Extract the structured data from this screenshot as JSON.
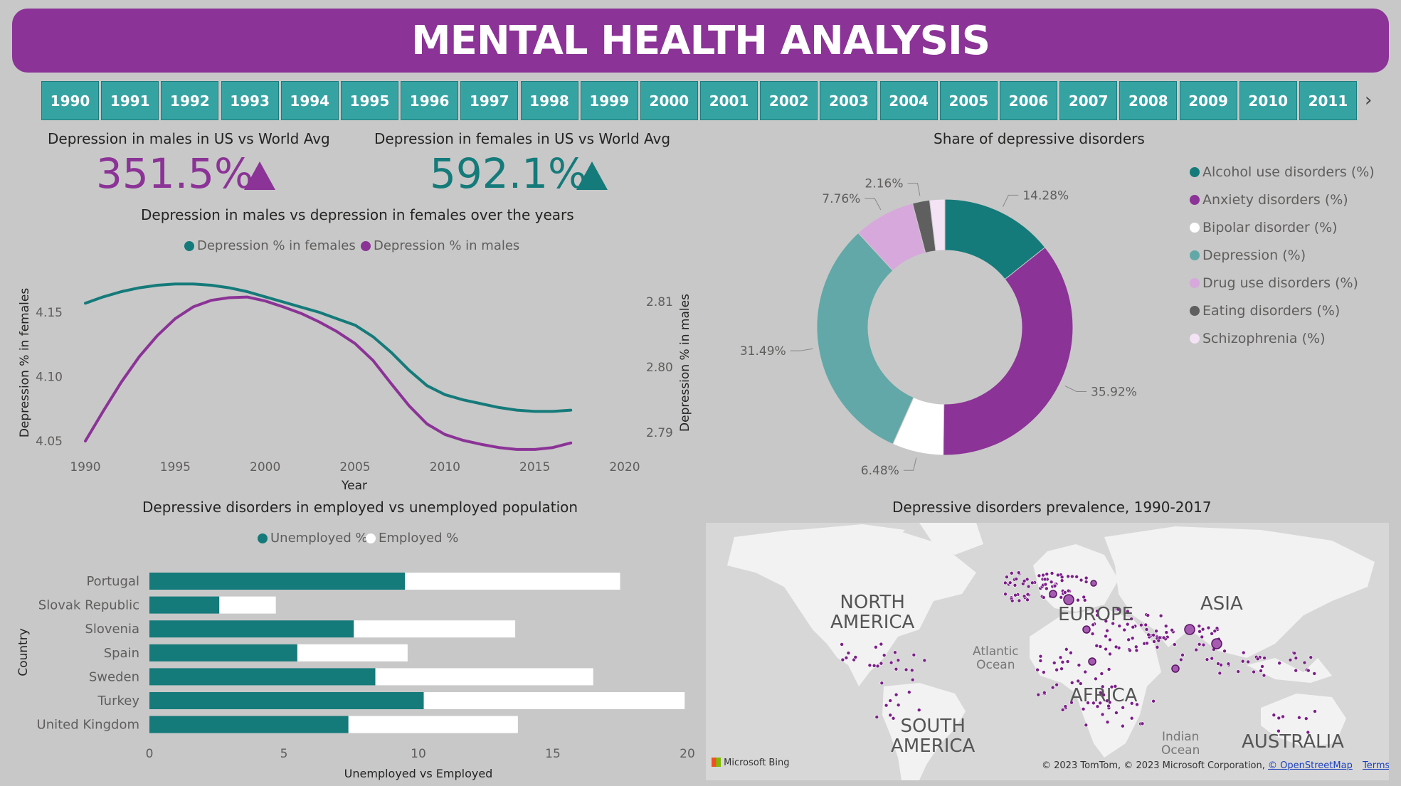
{
  "title": "MENTAL HEALTH ANALYSIS",
  "years": [
    "1990",
    "1991",
    "1992",
    "1993",
    "1994",
    "1995",
    "1996",
    "1997",
    "1998",
    "1999",
    "2000",
    "2001",
    "2002",
    "2003",
    "2004",
    "2005",
    "2006",
    "2007",
    "2008",
    "2009",
    "2010",
    "2011"
  ],
  "kpi_males": {
    "heading": "Depression in males in US vs World Avg",
    "value": "351.5%",
    "color": "#8b3396"
  },
  "kpi_females": {
    "heading": "Depression in females in US vs World Avg",
    "value": "592.1%",
    "color": "#157a7a"
  },
  "colors": {
    "teal": "#157a7a",
    "purple": "#8b3396",
    "teal_light": "#62a8a8",
    "slicer": "#36a3a3",
    "banner": "#8b3396"
  },
  "chart_data": [
    {
      "type": "line",
      "title": "Depression in males vs depression in females over the years",
      "xlabel": "Year",
      "ylabel": "Depression % in females",
      "y2label": "Depression % in males",
      "xlim": [
        1990,
        2020
      ],
      "x_ticks": [
        "1990",
        "1995",
        "2000",
        "2005",
        "2010",
        "2015",
        "2020"
      ],
      "y_ticks": [
        "4.05",
        "4.10",
        "4.15"
      ],
      "y2_ticks": [
        "2.79",
        "2.80",
        "2.81"
      ],
      "ylim": [
        4.05,
        4.15
      ],
      "y2lim": [
        2.79,
        2.81
      ],
      "x": [
        1990,
        1991,
        1992,
        1993,
        1994,
        1995,
        1996,
        1997,
        1998,
        1999,
        2000,
        2001,
        2002,
        2003,
        2004,
        2005,
        2006,
        2007,
        2008,
        2009,
        2010,
        2011,
        2012,
        2013,
        2014,
        2015,
        2016,
        2017
      ],
      "series": [
        {
          "name": "Depression % in females",
          "axis": "left",
          "color": "#157a7a",
          "values": [
            4.157,
            4.162,
            4.166,
            4.169,
            4.171,
            4.172,
            4.172,
            4.171,
            4.169,
            4.166,
            4.162,
            4.158,
            4.154,
            4.15,
            4.145,
            4.14,
            4.131,
            4.119,
            4.105,
            4.093,
            4.086,
            4.082,
            4.079,
            4.076,
            4.074,
            4.073,
            4.073,
            4.074
          ]
        },
        {
          "name": "Depression % in males",
          "axis": "right",
          "color": "#8b3396",
          "values": [
            2.7887,
            2.7933,
            2.7977,
            2.8016,
            2.8048,
            2.8074,
            2.8092,
            2.8102,
            2.8106,
            2.8107,
            2.8101,
            2.8092,
            2.8082,
            2.8069,
            2.8054,
            2.8036,
            2.801,
            2.7975,
            2.7941,
            2.7913,
            2.7897,
            2.7888,
            2.7882,
            2.7877,
            2.7874,
            2.7874,
            2.7877,
            2.7884
          ]
        }
      ]
    },
    {
      "type": "pie",
      "title": "Share of depressive disorders",
      "slices": [
        {
          "name": "Alcohol use disorders (%)",
          "value": 14.28,
          "label": "14.28%",
          "color": "#157a7a"
        },
        {
          "name": "Anxiety disorders (%)",
          "value": 35.92,
          "label": "35.92%",
          "color": "#8b3396"
        },
        {
          "name": "Bipolar disorder (%)",
          "value": 6.48,
          "label": "6.48%",
          "color": "#ffffff"
        },
        {
          "name": "Depression (%)",
          "value": 31.49,
          "label": "31.49%",
          "color": "#62a8a8"
        },
        {
          "name": "Drug use disorders (%)",
          "value": 7.76,
          "label": "7.76%",
          "color": "#d7a8dc"
        },
        {
          "name": "Eating disorders (%)",
          "value": 2.16,
          "label": "2.16%",
          "color": "#5f5f5f"
        },
        {
          "name": "Schizophrenia (%)",
          "value": 1.91,
          "label": "",
          "color": "#f3e3f5"
        }
      ]
    },
    {
      "type": "bar",
      "orientation": "horizontal",
      "stacked": true,
      "title": "Depressive disorders in employed vs unemployed population",
      "xlabel": "Unemployed vs Employed",
      "ylabel": "Country",
      "xlim": [
        0,
        20
      ],
      "x_ticks": [
        "0",
        "5",
        "10",
        "15",
        "20"
      ],
      "categories": [
        "Portugal",
        "Slovak Republic",
        "Slovenia",
        "Spain",
        "Sweden",
        "Turkey",
        "United Kingdom"
      ],
      "series": [
        {
          "name": "Unemployed %",
          "color": "#157a7a",
          "values": [
            9.5,
            2.6,
            7.6,
            5.5,
            8.4,
            10.2,
            7.4
          ]
        },
        {
          "name": "Employed %",
          "color": "#ffffff",
          "values": [
            8.0,
            2.1,
            6.0,
            4.1,
            8.1,
            9.7,
            6.3
          ]
        }
      ]
    }
  ],
  "map": {
    "title": "Depressive disorders prevalence, 1990-2017",
    "continents": [
      "NORTH\nAMERICA",
      "EUROPE",
      "ASIA",
      "AFRICA",
      "SOUTH\nAMERICA",
      "AUSTRALIA"
    ],
    "oceans": [
      "Atlantic\nOcean",
      "Indian\nOcean"
    ],
    "bing": "Microsoft Bing",
    "copyright": "© 2023 TomTom, © 2023 Microsoft Corporation,",
    "osm": "© OpenStreetMap",
    "terms": "Terms"
  }
}
